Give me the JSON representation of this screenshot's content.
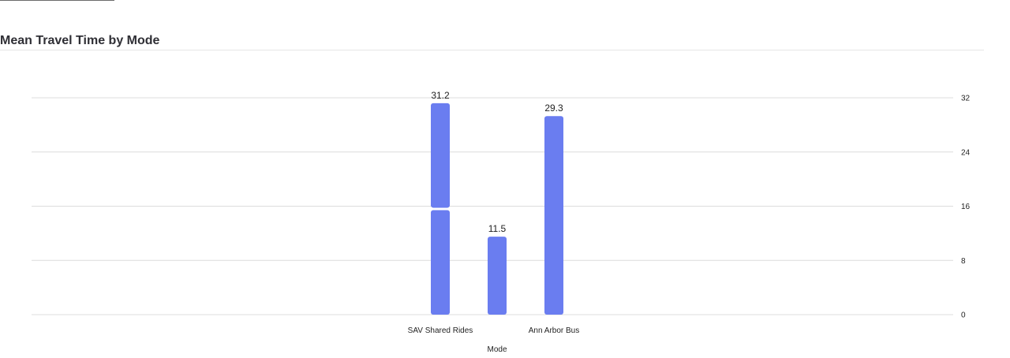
{
  "chart_data": {
    "type": "bar",
    "title": "Mean Travel Time by Mode",
    "xlabel": "Mode",
    "ylabel": "",
    "ylim": [
      0,
      32
    ],
    "yticks": [
      0,
      8,
      16,
      24,
      32
    ],
    "grid": true,
    "y_axis_side": "right",
    "bar_color": "#6A7DF0",
    "categories": [
      "SAV Shared Rides",
      "",
      "Ann Arbor Bus"
    ],
    "series": [
      {
        "values": [
          15.6,
          0,
          0
        ]
      },
      {
        "values": [
          15.6,
          11.5,
          29.3
        ]
      }
    ],
    "totals": [
      31.2,
      11.5,
      29.3
    ]
  }
}
